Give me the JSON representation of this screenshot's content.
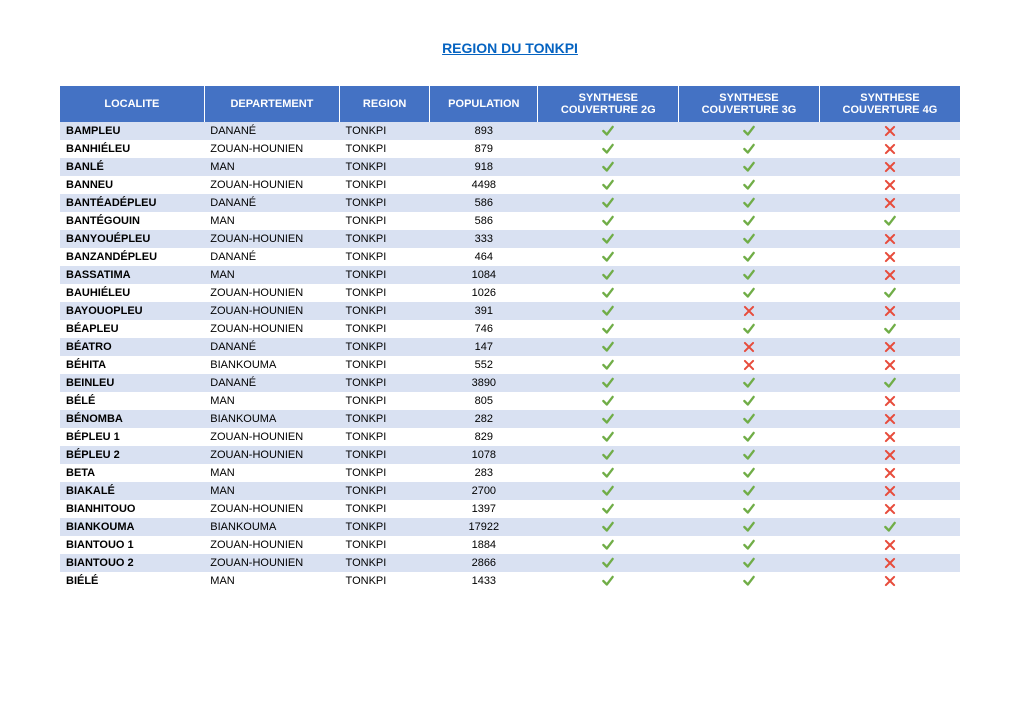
{
  "title": "REGION DU TONKPI",
  "header_bg": "#4472c4",
  "header_fg": "#ffffff",
  "row_odd_bg": "#d9e1f2",
  "row_even_bg": "#ffffff",
  "title_color": "#0563c1",
  "check_color": "#70ad47",
  "cross_color": "#e74c3c",
  "columns": [
    "LOCALITE",
    "DEPARTEMENT",
    "REGION",
    "POPULATION",
    "SYNTHESE COUVERTURE 2G",
    "SYNTHESE COUVERTURE 3G",
    "SYNTHESE COUVERTURE 4G"
  ],
  "rows": [
    {
      "localite": "BAMPLEU",
      "departement": "DANANÉ",
      "region": "TONKPI",
      "population": "893",
      "cov2g": true,
      "cov3g": true,
      "cov4g": false
    },
    {
      "localite": "BANHIÉLEU",
      "departement": "ZOUAN-HOUNIEN",
      "region": "TONKPI",
      "population": "879",
      "cov2g": true,
      "cov3g": true,
      "cov4g": false
    },
    {
      "localite": "BANLÉ",
      "departement": "MAN",
      "region": "TONKPI",
      "population": "918",
      "cov2g": true,
      "cov3g": true,
      "cov4g": false
    },
    {
      "localite": "BANNEU",
      "departement": "ZOUAN-HOUNIEN",
      "region": "TONKPI",
      "population": "4498",
      "cov2g": true,
      "cov3g": true,
      "cov4g": false
    },
    {
      "localite": "BANTÉADÉPLEU",
      "departement": "DANANÉ",
      "region": "TONKPI",
      "population": "586",
      "cov2g": true,
      "cov3g": true,
      "cov4g": false
    },
    {
      "localite": "BANTÉGOUIN",
      "departement": "MAN",
      "region": "TONKPI",
      "population": "586",
      "cov2g": true,
      "cov3g": true,
      "cov4g": true
    },
    {
      "localite": "BANYOUÉPLEU",
      "departement": "ZOUAN-HOUNIEN",
      "region": "TONKPI",
      "population": "333",
      "cov2g": true,
      "cov3g": true,
      "cov4g": false
    },
    {
      "localite": "BANZANDÉPLEU",
      "departement": "DANANÉ",
      "region": "TONKPI",
      "population": "464",
      "cov2g": true,
      "cov3g": true,
      "cov4g": false
    },
    {
      "localite": "BASSATIMA",
      "departement": "MAN",
      "region": "TONKPI",
      "population": "1084",
      "cov2g": true,
      "cov3g": true,
      "cov4g": false
    },
    {
      "localite": "BAUHIÉLEU",
      "departement": "ZOUAN-HOUNIEN",
      "region": "TONKPI",
      "population": "1026",
      "cov2g": true,
      "cov3g": true,
      "cov4g": true
    },
    {
      "localite": "BAYOUOPLEU",
      "departement": "ZOUAN-HOUNIEN",
      "region": "TONKPI",
      "population": "391",
      "cov2g": true,
      "cov3g": false,
      "cov4g": false
    },
    {
      "localite": "BÉAPLEU",
      "departement": "ZOUAN-HOUNIEN",
      "region": "TONKPI",
      "population": "746",
      "cov2g": true,
      "cov3g": true,
      "cov4g": true
    },
    {
      "localite": "BÉATRO",
      "departement": "DANANÉ",
      "region": "TONKPI",
      "population": "147",
      "cov2g": true,
      "cov3g": false,
      "cov4g": false
    },
    {
      "localite": "BÉHITA",
      "departement": "BIANKOUMA",
      "region": "TONKPI",
      "population": "552",
      "cov2g": true,
      "cov3g": false,
      "cov4g": false
    },
    {
      "localite": "BEINLEU",
      "departement": "DANANÉ",
      "region": "TONKPI",
      "population": "3890",
      "cov2g": true,
      "cov3g": true,
      "cov4g": true
    },
    {
      "localite": "BÉLÉ",
      "departement": "MAN",
      "region": "TONKPI",
      "population": "805",
      "cov2g": true,
      "cov3g": true,
      "cov4g": false
    },
    {
      "localite": "BÉNOMBA",
      "departement": "BIANKOUMA",
      "region": "TONKPI",
      "population": "282",
      "cov2g": true,
      "cov3g": true,
      "cov4g": false
    },
    {
      "localite": "BÉPLEU 1",
      "departement": "ZOUAN-HOUNIEN",
      "region": "TONKPI",
      "population": "829",
      "cov2g": true,
      "cov3g": true,
      "cov4g": false
    },
    {
      "localite": "BÉPLEU 2",
      "departement": "ZOUAN-HOUNIEN",
      "region": "TONKPI",
      "population": "1078",
      "cov2g": true,
      "cov3g": true,
      "cov4g": false
    },
    {
      "localite": "BETA",
      "departement": "MAN",
      "region": "TONKPI",
      "population": "283",
      "cov2g": true,
      "cov3g": true,
      "cov4g": false
    },
    {
      "localite": "BIAKALÉ",
      "departement": "MAN",
      "region": "TONKPI",
      "population": "2700",
      "cov2g": true,
      "cov3g": true,
      "cov4g": false
    },
    {
      "localite": "BIANHITOUO",
      "departement": "ZOUAN-HOUNIEN",
      "region": "TONKPI",
      "population": "1397",
      "cov2g": true,
      "cov3g": true,
      "cov4g": false
    },
    {
      "localite": "BIANKOUMA",
      "departement": "BIANKOUMA",
      "region": "TONKPI",
      "population": "17922",
      "cov2g": true,
      "cov3g": true,
      "cov4g": true
    },
    {
      "localite": "BIANTOUO 1",
      "departement": "ZOUAN-HOUNIEN",
      "region": "TONKPI",
      "population": "1884",
      "cov2g": true,
      "cov3g": true,
      "cov4g": false
    },
    {
      "localite": "BIANTOUO 2",
      "departement": "ZOUAN-HOUNIEN",
      "region": "TONKPI",
      "population": "2866",
      "cov2g": true,
      "cov3g": true,
      "cov4g": false
    },
    {
      "localite": "BIÉLÉ",
      "departement": "MAN",
      "region": "TONKPI",
      "population": "1433",
      "cov2g": true,
      "cov3g": true,
      "cov4g": false
    }
  ]
}
